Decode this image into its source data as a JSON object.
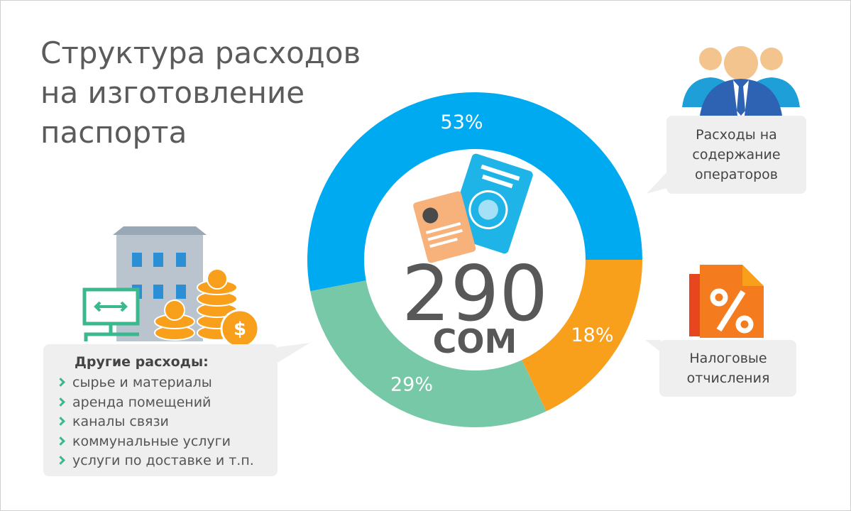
{
  "chart_data": {
    "type": "donut",
    "title": "Структура расходов на изготовление паспорта",
    "center_value": "290",
    "center_unit": "СОМ",
    "categories": [
      "Расходы на содержание операторов",
      "Налоговые отчисления",
      "Другие расходы:"
    ],
    "values": [
      53,
      18,
      29
    ],
    "value_labels": [
      "53%",
      "18%",
      "29%"
    ],
    "colors": [
      "#00aaf0",
      "#f8a01c",
      "#76c8a7"
    ],
    "other_items": [
      "сырье и материалы",
      "аренда помещений",
      "каналы связи",
      "коммунальные услуги",
      "услуги по доставке и т.п."
    ]
  }
}
